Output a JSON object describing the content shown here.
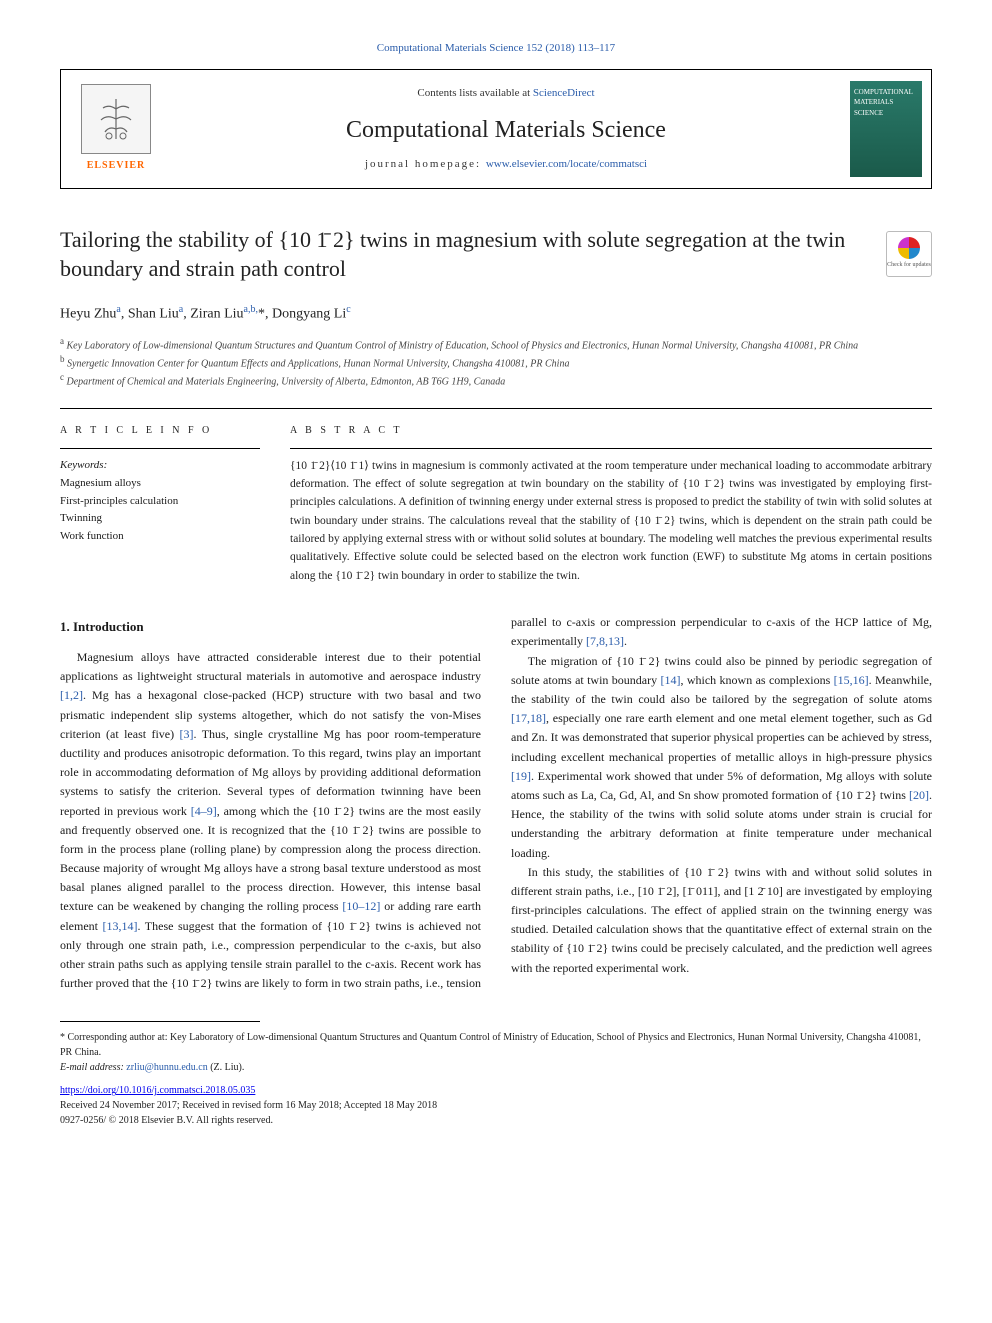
{
  "header": {
    "journal_ref": "Computational Materials Science 152 (2018) 113–117",
    "contents_prefix": "Contents lists available at ",
    "contents_link": "ScienceDirect",
    "journal_title": "Computational Materials Science",
    "homepage_prefix": "journal homepage: ",
    "homepage_url": "www.elsevier.com/locate/commatsci",
    "elsevier_label": "ELSEVIER",
    "cover_label": "COMPUTATIONAL MATERIALS SCIENCE",
    "check_updates": "Check for updates"
  },
  "article": {
    "title": "Tailoring the stability of {10 1̄ 2} twins in magnesium with solute segregation at the twin boundary and strain path control",
    "authors_html": "Heyu Zhu<sup>a</sup>, Shan Liu<sup>a</sup>, Ziran Liu<sup>a,b,</sup>*, Dongyang Li<sup>c</sup>",
    "affiliations": {
      "a": "Key Laboratory of Low-dimensional Quantum Structures and Quantum Control of Ministry of Education, School of Physics and Electronics, Hunan Normal University, Changsha 410081, PR China",
      "b": "Synergetic Innovation Center for Quantum Effects and Applications, Hunan Normal University, Changsha 410081, PR China",
      "c": "Department of Chemical and Materials Engineering, University of Alberta, Edmonton, AB T6G 1H9, Canada"
    }
  },
  "info": {
    "heading": "A R T I C L E  I N F O",
    "keywords_label": "Keywords:",
    "keywords": [
      "Magnesium alloys",
      "First-principles calculation",
      "Twinning",
      "Work function"
    ]
  },
  "abstract": {
    "heading": "A B S T R A C T",
    "text": "{10 1̄ 2}⟨10 1̄ 1⟩ twins in magnesium is commonly activated at the room temperature under mechanical loading to accommodate arbitrary deformation. The effect of solute segregation at twin boundary on the stability of {10 1̄ 2} twins was investigated by employing first-principles calculations. A definition of twinning energy under external stress is proposed to predict the stability of twin with solid solutes at twin boundary under strains. The calculations reveal that the stability of {10 1̄ 2} twins, which is dependent on the strain path could be tailored by applying external stress with or without solid solutes at boundary. The modeling well matches the previous experimental results qualitatively. Effective solute could be selected based on the electron work function (EWF) to substitute Mg atoms in certain positions along the {10 1̄ 2} twin boundary in order to stabilize the twin."
  },
  "body": {
    "intro_heading": "1. Introduction",
    "p1_a": "Magnesium alloys have attracted considerable interest due to their potential applications as lightweight structural materials in automotive and aerospace industry ",
    "p1_ref1": "[1,2]",
    "p1_b": ". Mg has a hexagonal close-packed (HCP) structure with two basal and two prismatic independent slip systems altogether, which do not satisfy the von-Mises criterion (at least five) ",
    "p1_ref2": "[3]",
    "p1_c": ". Thus, single crystalline Mg has poor room-temperature ductility and produces anisotropic deformation. To this regard, twins play an important role in accommodating deformation of Mg alloys by providing additional deformation systems to satisfy the criterion. Several types of deformation twinning have been reported in previous work ",
    "p1_ref3": "[4–9]",
    "p1_d": ", among which the {10 1̄ 2} twins are the most easily and frequently observed one. It is recognized that the {10 1̄ 2} twins are possible to form in the process plane (rolling plane) by compression along the process direction. Because majority of wrought Mg alloys have a strong basal texture understood as most basal planes aligned parallel to the process direction. However, this intense basal texture can be weakened by changing the rolling process ",
    "p1_ref4": "[10–12]",
    "p1_e": " or adding rare earth element ",
    "p1_ref5": "[13,14]",
    "p1_f": ". These suggest that the formation of {10 1̄ 2} twins is achieved not only through one strain path, i.e., compression perpendicular to the c-axis, but also other strain paths such as applying tensile strain parallel to the c-axis. Recent work has further proved that the {10 1̄ 2} twins are likely to form in two strain paths, i.e., tension parallel to c-axis or compression perpendicular to c-axis of the HCP lattice of Mg, experimentally ",
    "p1_ref6": "[7,8,13]",
    "p1_g": ".",
    "p2_a": "The migration of {10 1̄ 2} twins could also be pinned by periodic segregation of solute atoms at twin boundary ",
    "p2_ref1": "[14]",
    "p2_b": ", which known as complexions ",
    "p2_ref2": "[15,16]",
    "p2_c": ". Meanwhile, the stability of the twin could also be tailored by the segregation of solute atoms ",
    "p2_ref3": "[17,18]",
    "p2_d": ", especially one rare earth element and one metal element together, such as Gd and Zn. It was demonstrated that superior physical properties can be achieved by stress, including excellent mechanical properties of metallic alloys in high-pressure physics ",
    "p2_ref4": "[19]",
    "p2_e": ". Experimental work showed that under 5% of deformation, Mg alloys with solute atoms such as La, Ca, Gd, Al, and Sn show promoted formation of {10 1̄ 2} twins ",
    "p2_ref5": "[20]",
    "p2_f": ". Hence, the stability of the twins with solid solute atoms under strain is crucial for understanding the arbitrary deformation at finite temperature under mechanical loading.",
    "p3": "In this study, the stabilities of {10 1̄ 2} twins with and without solid solutes in different strain paths, i.e., [10 1̄ 2], [1̄ 011], and [1 2̄ 10] are investigated by employing first-principles calculations. The effect of applied strain on the twinning energy was studied. Detailed calculation shows that the quantitative effect of external strain on the stability of {10 1̄ 2} twins could be precisely calculated, and the prediction well agrees with the reported experimental work."
  },
  "footer": {
    "corr_prefix": "* Corresponding author at: Key Laboratory of Low-dimensional Quantum Structures and Quantum Control of Ministry of Education, School of Physics and Electronics, Hunan Normal University, Changsha 410081, PR China.",
    "email_label": "E-mail address: ",
    "email": "zrliu@hunnu.edu.cn",
    "email_suffix": " (Z. Liu).",
    "doi": "https://doi.org/10.1016/j.commatsci.2018.05.035",
    "received": "Received 24 November 2017; Received in revised form 16 May 2018; Accepted 18 May 2018",
    "issn_copyright": "0927-0256/ © 2018 Elsevier B.V. All rights reserved."
  },
  "colors": {
    "link": "#2a5caa",
    "elsevier_orange": "#ff6600",
    "cover_bg": "#2a7a6a"
  }
}
